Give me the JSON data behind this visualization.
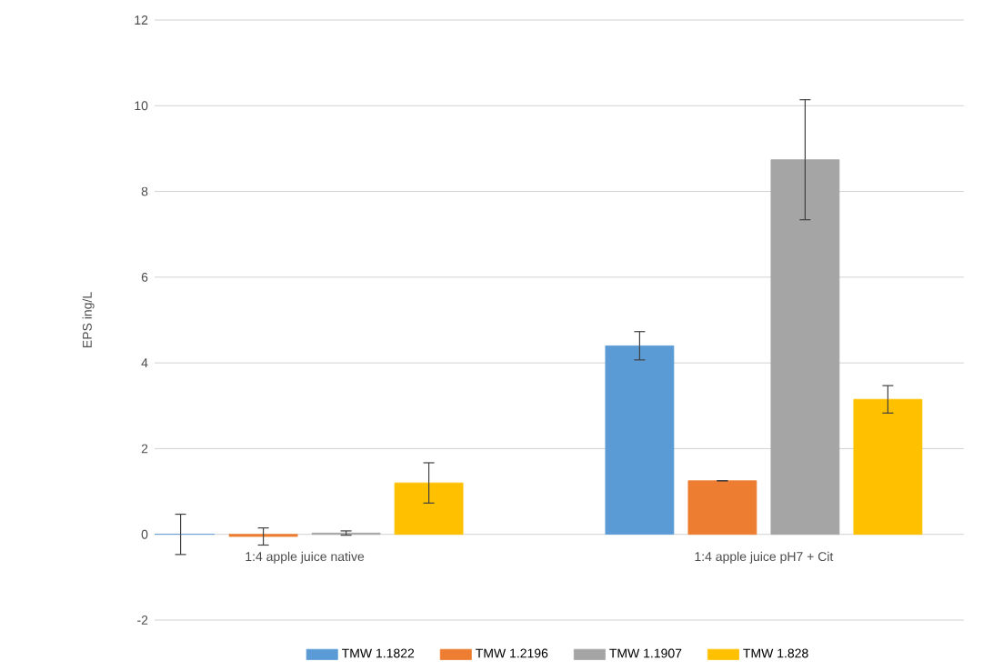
{
  "chart_data": {
    "type": "bar",
    "ylabel": "EPS ing/L",
    "categories": [
      "1:4 apple juice native",
      "1:4 apple juice pH7 + Cit"
    ],
    "series": [
      {
        "name": "TMW 1.1822",
        "color": "#5b9bd5",
        "values": [
          0,
          4.4
        ],
        "errors": [
          0.47,
          0.33
        ]
      },
      {
        "name": "TMW 1.2196",
        "color": "#ed7d31",
        "values": [
          -0.05,
          1.25
        ],
        "errors": [
          0.2,
          0
        ]
      },
      {
        "name": "TMW 1.1907",
        "color": "#a5a5a5",
        "values": [
          0.03,
          8.74
        ],
        "errors": [
          0.05,
          1.4
        ]
      },
      {
        "name": "TMW 1.828",
        "color": "#ffc000",
        "values": [
          1.2,
          3.15
        ],
        "errors": [
          0.47,
          0.32
        ]
      }
    ],
    "ylim": [
      -2,
      12
    ],
    "yticks": [
      -2,
      0,
      2,
      4,
      6,
      8,
      10,
      12
    ],
    "grid": "y",
    "legend": "bottom"
  }
}
